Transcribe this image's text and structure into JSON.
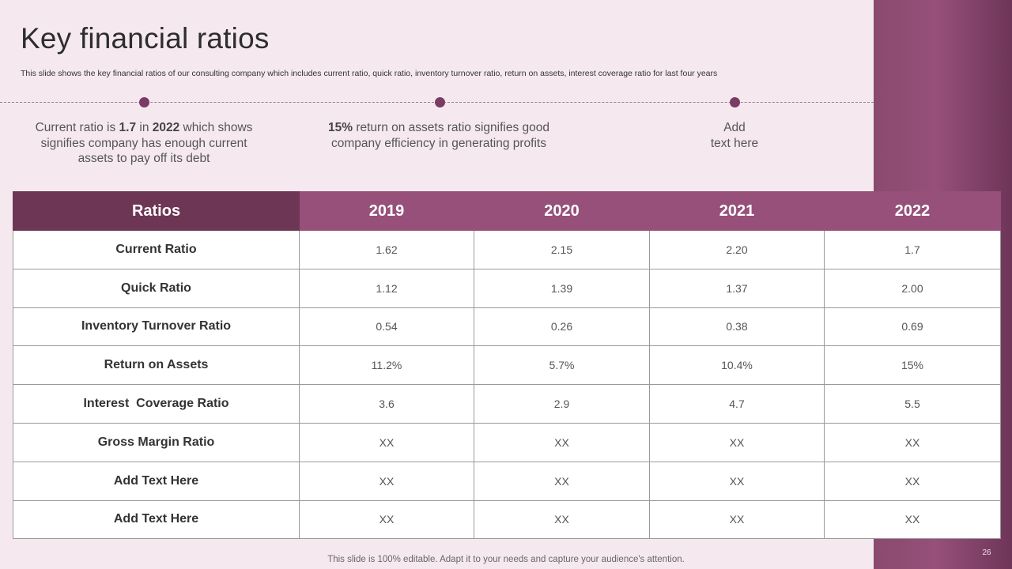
{
  "title": "Key financial ratios",
  "subtitle": "This slide shows the key financial ratios of our consulting company which includes current ratio, quick ratio, inventory turnover ratio, return on assets, interest coverage ratio for last four years",
  "callouts": [
    {
      "before": "Current ratio is ",
      "bold1": "1.7",
      "middle": " in ",
      "bold2": "2022",
      "after": " which shows signifies company has enough current assets to pay off its debt"
    },
    {
      "bold": "15%",
      "text": " return on assets ratio signifies good company efficiency in generating profits"
    },
    {
      "line1": "Add",
      "line2": "text here"
    }
  ],
  "table": {
    "headers": [
      "Ratios",
      "2019",
      "2020",
      "2021",
      "2022"
    ],
    "rows": [
      {
        "label": "Current Ratio",
        "values": [
          "1.62",
          "2.15",
          "2.20",
          "1.7"
        ]
      },
      {
        "label": "Quick Ratio",
        "values": [
          "1.12",
          "1.39",
          "1.37",
          "2.00"
        ]
      },
      {
        "label": "Inventory Turnover Ratio",
        "values": [
          "0.54",
          "0.26",
          "0.38",
          "0.69"
        ]
      },
      {
        "label": "Return on Assets",
        "values": [
          "11.2%",
          "5.7%",
          "10.4%",
          "15%"
        ]
      },
      {
        "label": "Interest  Coverage Ratio",
        "values": [
          "3.6",
          "2.9",
          "4.7",
          "5.5"
        ]
      },
      {
        "label": "Gross Margin Ratio",
        "values": [
          "XX",
          "XX",
          "XX",
          "XX"
        ]
      },
      {
        "label": "Add Text Here",
        "values": [
          "XX",
          "XX",
          "XX",
          "XX"
        ]
      },
      {
        "label": "Add Text Here",
        "values": [
          "XX",
          "XX",
          "XX",
          "XX"
        ]
      }
    ]
  },
  "footer": "This slide is 100% editable. Adapt it to your needs and capture your audience's attention.",
  "page_number": "26"
}
